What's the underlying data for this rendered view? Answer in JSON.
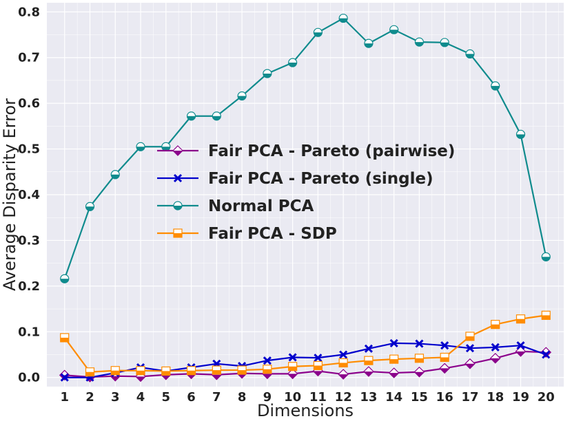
{
  "chart_data": {
    "type": "line",
    "title": "",
    "xlabel": "Dimensions",
    "ylabel": "Average Disparity Error",
    "x": [
      1,
      2,
      3,
      4,
      5,
      6,
      7,
      8,
      9,
      10,
      11,
      12,
      13,
      14,
      15,
      16,
      17,
      18,
      19,
      20
    ],
    "xlim": [
      0.3,
      20.7
    ],
    "ylim": [
      -0.02,
      0.82
    ],
    "yticks": [
      "0.0",
      "0.1",
      "0.2",
      "0.3",
      "0.4",
      "0.5",
      "0.6",
      "0.7",
      "0.8"
    ],
    "ytick_values": [
      0.0,
      0.1,
      0.2,
      0.3,
      0.4,
      0.5,
      0.6,
      0.7,
      0.8
    ],
    "grid": true,
    "legend_position": "center-left",
    "series": [
      {
        "name": "Fair PCA - Pareto (pairwise)",
        "color": "#8b008b",
        "marker": "diamond",
        "values": [
          0.005,
          0.001,
          0.003,
          0.002,
          0.006,
          0.008,
          0.006,
          0.009,
          0.008,
          0.008,
          0.014,
          0.007,
          0.013,
          0.01,
          0.012,
          0.02,
          0.03,
          0.042,
          0.057,
          0.055
        ]
      },
      {
        "name": "Fair PCA - Pareto (single)",
        "color": "#0000cc",
        "marker": "x",
        "values": [
          0.0,
          0.0,
          0.01,
          0.022,
          0.014,
          0.022,
          0.03,
          0.025,
          0.037,
          0.044,
          0.043,
          0.05,
          0.063,
          0.075,
          0.074,
          0.07,
          0.064,
          0.066,
          0.07,
          0.05
        ]
      },
      {
        "name": "Normal PCA",
        "color": "#0f8b8d",
        "marker": "circle",
        "values": [
          0.216,
          0.374,
          0.444,
          0.505,
          0.505,
          0.572,
          0.572,
          0.616,
          0.665,
          0.689,
          0.755,
          0.786,
          0.731,
          0.761,
          0.734,
          0.733,
          0.708,
          0.638,
          0.532,
          0.264
        ]
      },
      {
        "name": "Fair PCA - SDP",
        "color": "#ff8c00",
        "marker": "square",
        "values": [
          0.087,
          0.012,
          0.015,
          0.015,
          0.014,
          0.015,
          0.016,
          0.016,
          0.018,
          0.024,
          0.026,
          0.032,
          0.037,
          0.04,
          0.042,
          0.044,
          0.09,
          0.116,
          0.128,
          0.136
        ]
      }
    ]
  }
}
